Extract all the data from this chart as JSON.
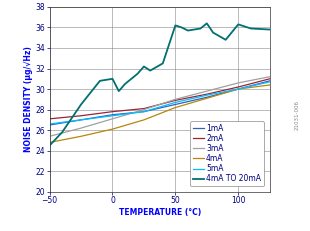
{
  "xlabel": "TEMPERATURE (°C)",
  "ylabel": "NOISE DENSITY (μg/√Hz)",
  "xlim": [
    -50,
    125
  ],
  "ylim": [
    20,
    38
  ],
  "xticks": [
    -50,
    0,
    50,
    100
  ],
  "yticks": [
    20,
    22,
    24,
    26,
    28,
    30,
    32,
    34,
    36,
    38
  ],
  "series": {
    "1mA": {
      "color": "#3060C0",
      "x": [
        -50,
        -25,
        0,
        25,
        50,
        75,
        100,
        125
      ],
      "y": [
        26.5,
        27.0,
        27.5,
        27.8,
        28.5,
        29.2,
        30.0,
        30.8
      ]
    },
    "2mA": {
      "color": "#9B2335",
      "x": [
        -50,
        -25,
        0,
        25,
        50,
        75,
        100,
        125
      ],
      "y": [
        27.1,
        27.4,
        27.8,
        28.1,
        28.9,
        29.5,
        30.2,
        31.0
      ]
    },
    "3mA": {
      "color": "#A0A0A0",
      "x": [
        -50,
        -25,
        0,
        25,
        50,
        75,
        100,
        125
      ],
      "y": [
        25.4,
        26.2,
        27.1,
        28.0,
        29.0,
        29.8,
        30.6,
        31.2
      ]
    },
    "4mA": {
      "color": "#B8860B",
      "x": [
        -50,
        -25,
        0,
        25,
        50,
        75,
        100,
        125
      ],
      "y": [
        24.8,
        25.4,
        26.1,
        27.0,
        28.2,
        29.1,
        30.0,
        30.4
      ]
    },
    "5mA": {
      "color": "#00BFFF",
      "x": [
        -50,
        -25,
        0,
        25,
        50,
        75,
        100,
        125
      ],
      "y": [
        26.6,
        27.0,
        27.4,
        27.8,
        28.7,
        29.4,
        30.0,
        30.7
      ]
    },
    "4mA TO 20mA": {
      "color": "#007070",
      "x": [
        -50,
        -40,
        -25,
        -10,
        0,
        5,
        10,
        20,
        25,
        30,
        40,
        50,
        55,
        60,
        70,
        75,
        80,
        90,
        100,
        110,
        125
      ],
      "y": [
        24.5,
        25.8,
        28.5,
        30.8,
        31.0,
        29.8,
        30.5,
        31.5,
        32.2,
        31.8,
        32.5,
        36.2,
        36.0,
        35.7,
        35.9,
        36.4,
        35.5,
        34.8,
        36.3,
        35.9,
        35.8
      ]
    }
  },
  "legend_order": [
    "1mA",
    "2mA",
    "3mA",
    "4mA",
    "5mA",
    "4mA TO 20mA"
  ],
  "label_color": "#0000FF",
  "tick_color": "#0000AA",
  "background_color": "#ffffff",
  "label_fontsize": 5.5,
  "tick_fontsize": 5.5,
  "legend_fontsize": 5.5
}
